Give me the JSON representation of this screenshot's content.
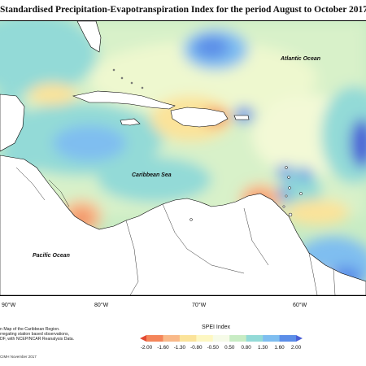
{
  "title": "Standardised Precipitation-Evapotranspiration Index for the period August to October 2017",
  "places": {
    "atlantic": "Atlantic Ocean",
    "caribbean": "Caribbean Sea",
    "pacific": "Pacific Ocean"
  },
  "longitudes": [
    "90°W",
    "80°W",
    "70°W",
    "60°W"
  ],
  "notes": {
    "line1": "n Map of the Caribbean Region.",
    "line2": "rregating station based observations,",
    "line3": "DF, with NCEP/NCAR Reanalysis Data."
  },
  "credit": "CIMH November 2017",
  "legend": {
    "title": "SPEI Index",
    "ticks": [
      "-2.00",
      "-1.60",
      "-1.30",
      "-0.80",
      "-0.50",
      "0.50",
      "0.80",
      "1.30",
      "1.60",
      "2.00"
    ],
    "colors": [
      "#e34a33",
      "#f4855a",
      "#f9b989",
      "#fbe39a",
      "#fdf7c2",
      "#f6fbe8",
      "#c8ecc4",
      "#93dad7",
      "#7fbef0",
      "#5c8ee8",
      "#4a5fd6"
    ]
  },
  "map_colors": {
    "land": "#ffffff",
    "coast": "#000000",
    "base_wet": "#9ee4dc",
    "base_moist": "#d8f1c9",
    "dry": "#fbe39a",
    "very_dry": "#f08a5f",
    "extreme_dry": "#e34a33",
    "wet": "#7fbef0",
    "very_wet": "#5c8ee8",
    "extreme_wet": "#4a5fd6"
  }
}
